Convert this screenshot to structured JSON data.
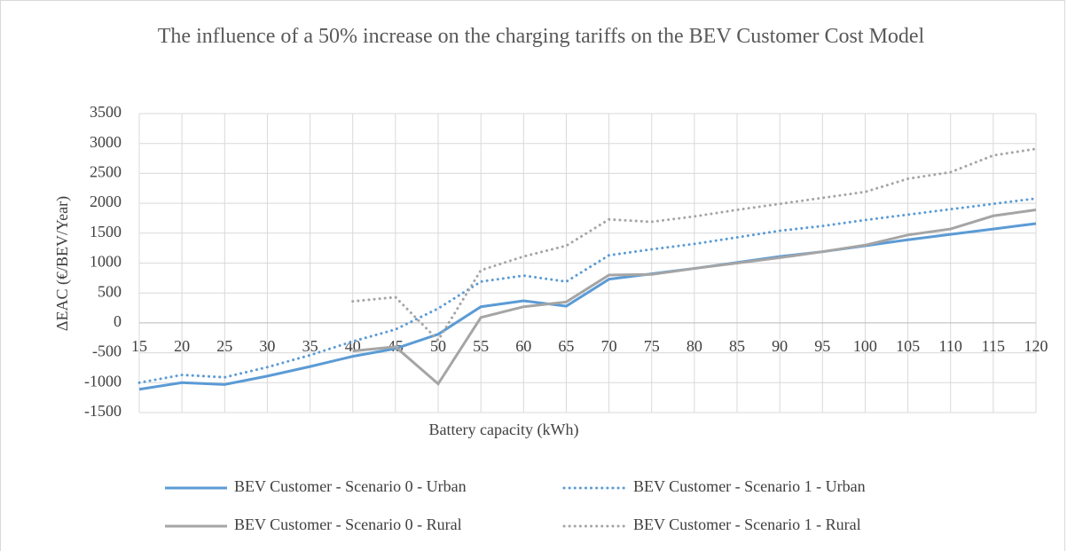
{
  "chart_data": {
    "type": "line",
    "title": "The influence of a 50% increase on the charging tariffs on the BEV Customer Cost Model",
    "x_label": "Battery capacity (kWh)",
    "y_label": "ΔEAC (€/BEV/Year)",
    "x": [
      15,
      20,
      25,
      30,
      35,
      40,
      45,
      50,
      55,
      60,
      65,
      70,
      75,
      80,
      85,
      90,
      95,
      100,
      105,
      110,
      115,
      120
    ],
    "xlim": [
      15,
      120
    ],
    "xticks": [
      15,
      20,
      25,
      30,
      35,
      40,
      45,
      50,
      55,
      60,
      65,
      70,
      75,
      80,
      85,
      90,
      95,
      100,
      105,
      110,
      115,
      120
    ],
    "ylim": [
      -1500,
      3500
    ],
    "yticks": [
      -1500,
      -1000,
      -500,
      0,
      500,
      1000,
      1500,
      2000,
      2500,
      3000,
      3500
    ],
    "grid": true,
    "legend": "bottom",
    "series": [
      {
        "name": "BEV Customer - Scenario 0 - Urban",
        "color": "#5b9bd5",
        "style": "solid",
        "values": [
          -1110,
          -1000,
          -1030,
          -890,
          -730,
          -560,
          -430,
          -190,
          270,
          370,
          280,
          730,
          820,
          910,
          1010,
          1110,
          1190,
          1290,
          1390,
          1480,
          1570,
          1660
        ]
      },
      {
        "name": "BEV Customer - Scenario 1 - Urban",
        "color": "#5b9bd5",
        "style": "dotted",
        "values": [
          -1000,
          -870,
          -910,
          -740,
          -540,
          -310,
          -110,
          240,
          690,
          790,
          690,
          1130,
          1230,
          1320,
          1430,
          1540,
          1620,
          1720,
          1810,
          1900,
          1990,
          2080
        ]
      },
      {
        "name": "BEV Customer - Scenario 0 - Rural",
        "color": "#a5a5a5",
        "style": "solid",
        "values": [
          null,
          null,
          null,
          null,
          null,
          -470,
          -400,
          -1020,
          90,
          270,
          350,
          800,
          810,
          910,
          1000,
          1090,
          1190,
          1300,
          1470,
          1570,
          1790,
          1890
        ]
      },
      {
        "name": "BEV Customer - Scenario 1 - Rural",
        "color": "#a5a5a5",
        "style": "dotted",
        "values": [
          null,
          null,
          null,
          null,
          null,
          360,
          430,
          -290,
          880,
          1110,
          1290,
          1730,
          1690,
          1780,
          1890,
          1990,
          2090,
          2190,
          2410,
          2520,
          2800,
          2910
        ]
      }
    ]
  }
}
